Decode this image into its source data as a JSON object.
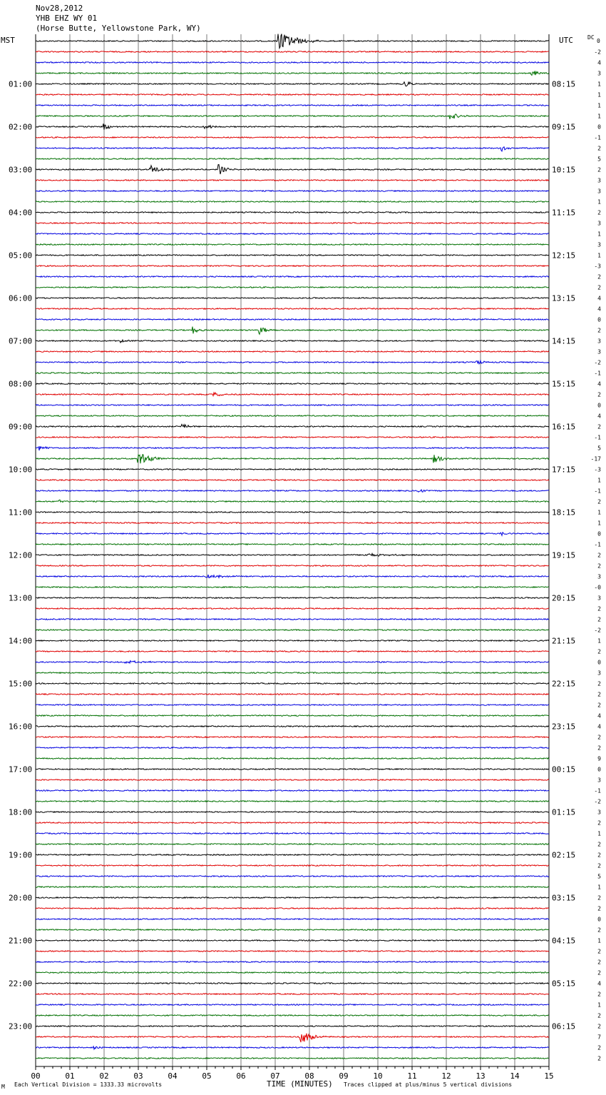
{
  "header": {
    "date": "Nov28,2012",
    "station": "YHB EHZ WY 01",
    "location": "(Horse Butte, Yellowstone Park, WY)"
  },
  "labels": {
    "left_tz": "MST",
    "right_tz": "UTC",
    "dc": "DC",
    "first_dc": "0"
  },
  "footer": {
    "scale_note": "Each Vertical Division = 1333.33 microvolts",
    "x_axis_label": "TIME (MINUTES)",
    "clip_note": "Traces clipped at plus/minus 5 vertical divisions",
    "corner_mark": "M"
  },
  "chart_data": {
    "type": "line",
    "title": "YHB EHZ WY 01",
    "xlabel": "TIME (MINUTES)",
    "xlim": [
      0,
      15
    ],
    "x_ticks": [
      "00",
      "01",
      "02",
      "03",
      "04",
      "05",
      "06",
      "07",
      "08",
      "09",
      "10",
      "11",
      "12",
      "13",
      "14",
      "15"
    ],
    "trace_minutes": 15,
    "trace_count": 96,
    "trace_colors": [
      "#000000",
      "#e00000",
      "#0000e0",
      "#007000"
    ],
    "grid_color": "#7a7a7a",
    "mst_hours": [
      "01:00",
      "02:00",
      "03:00",
      "04:00",
      "05:00",
      "06:00",
      "07:00",
      "08:00",
      "09:00",
      "10:00",
      "11:00",
      "12:00",
      "13:00",
      "14:00",
      "15:00",
      "16:00",
      "17:00",
      "18:00",
      "19:00",
      "20:00",
      "21:00",
      "22:00",
      "23:00"
    ],
    "utc_hours": [
      "08:15",
      "09:15",
      "10:15",
      "11:15",
      "12:15",
      "13:15",
      "14:15",
      "15:15",
      "16:15",
      "17:15",
      "18:15",
      "19:15",
      "20:15",
      "21:15",
      "22:15",
      "23:15",
      "00:15",
      "01:15",
      "02:15",
      "03:15",
      "04:15",
      "05:15",
      "06:15"
    ],
    "dc_offsets": [
      "-2",
      "4",
      "3",
      "1",
      "1",
      "1",
      "1",
      "0",
      "-1",
      "2",
      "5",
      "2",
      "3",
      "3",
      "1",
      "2",
      "3",
      "1",
      "3",
      "1",
      "-3",
      "2",
      "2",
      "4",
      "4",
      "0",
      "2",
      "3",
      "3",
      "-2",
      "-1",
      "4",
      "2",
      "0",
      "4",
      "2",
      "-1",
      "5",
      "-17",
      "-3",
      "1",
      "-1",
      "2",
      "1",
      "1",
      "0",
      "-1",
      "2",
      "2",
      "3",
      "-0",
      "3",
      "2",
      "2",
      "-2",
      "1",
      "2",
      "0",
      "3",
      "2",
      "2",
      "2",
      "4",
      "4",
      "2",
      "2",
      "9",
      "0",
      "3",
      "-1",
      "-2",
      "3",
      "2",
      "1",
      "2",
      "2",
      "2",
      "5",
      "1",
      "2",
      "2",
      "0",
      "2",
      "1",
      "2",
      "2",
      "2",
      "4",
      "2",
      "1",
      "2",
      "2",
      "7",
      "2",
      "2"
    ],
    "events": [
      {
        "trace": 0,
        "minute": 7.1,
        "amplitude": 5,
        "duration": 1.2
      },
      {
        "trace": 4,
        "minute": 10.8,
        "amplitude": 1.5,
        "duration": 0.5
      },
      {
        "trace": 7,
        "minute": 12.1,
        "amplitude": 1.8,
        "duration": 0.6
      },
      {
        "trace": 8,
        "minute": 2.0,
        "amplitude": 2.0,
        "duration": 0.4
      },
      {
        "trace": 8,
        "minute": 4.95,
        "amplitude": 1.8,
        "duration": 0.4
      },
      {
        "trace": 10,
        "minute": 13.6,
        "amplitude": 2.0,
        "duration": 0.4
      },
      {
        "trace": 12,
        "minute": 3.35,
        "amplitude": 2.2,
        "duration": 0.7
      },
      {
        "trace": 12,
        "minute": 5.35,
        "amplitude": 2.6,
        "duration": 0.5
      },
      {
        "trace": 3,
        "minute": 14.5,
        "amplitude": 1.8,
        "duration": 0.5
      },
      {
        "trace": 27,
        "minute": 4.6,
        "amplitude": 1.8,
        "duration": 0.4
      },
      {
        "trace": 27,
        "minute": 6.55,
        "amplitude": 2.2,
        "duration": 0.5
      },
      {
        "trace": 28,
        "minute": 2.5,
        "amplitude": 1.2,
        "duration": 0.3
      },
      {
        "trace": 30,
        "minute": 12.9,
        "amplitude": 1.2,
        "duration": 0.4
      },
      {
        "trace": 33,
        "minute": 5.2,
        "amplitude": 1.0,
        "duration": 0.6
      },
      {
        "trace": 36,
        "minute": 4.3,
        "amplitude": 1.6,
        "duration": 0.4
      },
      {
        "trace": 38,
        "minute": 0.1,
        "amplitude": 1.5,
        "duration": 0.5
      },
      {
        "trace": 39,
        "minute": 3.0,
        "amplitude": 3.2,
        "duration": 0.9
      },
      {
        "trace": 39,
        "minute": 11.65,
        "amplitude": 2.6,
        "duration": 0.5
      },
      {
        "trace": 42,
        "minute": 11.2,
        "amplitude": 1.4,
        "duration": 0.3
      },
      {
        "trace": 43,
        "minute": 0.7,
        "amplitude": 1.2,
        "duration": 0.3
      },
      {
        "trace": 46,
        "minute": 13.6,
        "amplitude": 0.9,
        "duration": 0.4
      },
      {
        "trace": 48,
        "minute": 9.6,
        "amplitude": 0.8,
        "duration": 1.6
      },
      {
        "trace": 50,
        "minute": 5.0,
        "amplitude": 0.7,
        "duration": 1.8
      },
      {
        "trace": 58,
        "minute": 2.6,
        "amplitude": 0.6,
        "duration": 1.6
      },
      {
        "trace": 93,
        "minute": 7.75,
        "amplitude": 3.4,
        "duration": 0.8
      },
      {
        "trace": 94,
        "minute": 1.7,
        "amplitude": 1.0,
        "duration": 0.3
      }
    ]
  }
}
